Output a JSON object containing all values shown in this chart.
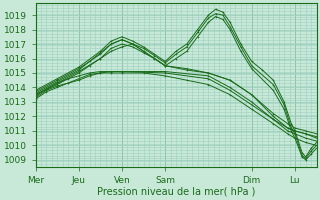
{
  "bg_color": "#c8e8d8",
  "grid_color": "#9ecfbe",
  "line_color": "#1a6b1a",
  "marker_color": "#1a6b1a",
  "xlabel": "Pression niveau de la mer( hPa )",
  "xtick_labels": [
    "Mer",
    "Jeu",
    "Ven",
    "Sam",
    "Dim",
    "Lu"
  ],
  "xtick_positions": [
    0,
    24,
    48,
    72,
    120,
    144
  ],
  "xlim": [
    0,
    156
  ],
  "ylim": [
    1008.5,
    1019.8
  ],
  "yticks": [
    1009,
    1010,
    1011,
    1012,
    1013,
    1014,
    1015,
    1016,
    1017,
    1018,
    1019
  ],
  "total_hours": 156,
  "curves": [
    [
      0,
      1013.3,
      6,
      1013.8,
      12,
      1014.1,
      18,
      1014.3,
      24,
      1014.5,
      30,
      1014.8,
      36,
      1015.0,
      42,
      1015.0,
      48,
      1015.0,
      60,
      1015.0,
      72,
      1014.8,
      84,
      1014.5,
      96,
      1014.2,
      108,
      1013.5,
      120,
      1012.5,
      132,
      1011.5,
      140,
      1010.8,
      144,
      1010.5,
      150,
      1010.2,
      156,
      1010.0
    ],
    [
      0,
      1013.4,
      6,
      1013.9,
      12,
      1014.3,
      18,
      1014.6,
      24,
      1014.8,
      30,
      1015.0,
      36,
      1015.1,
      42,
      1015.1,
      48,
      1015.1,
      72,
      1015.0,
      96,
      1014.6,
      108,
      1013.8,
      120,
      1012.8,
      132,
      1011.8,
      140,
      1011.0,
      144,
      1010.8,
      150,
      1010.5,
      156,
      1010.3
    ],
    [
      0,
      1013.2,
      6,
      1013.7,
      12,
      1014.0,
      18,
      1014.3,
      24,
      1014.6,
      30,
      1014.9,
      36,
      1015.0,
      42,
      1015.1,
      48,
      1015.1,
      72,
      1015.1,
      96,
      1014.8,
      108,
      1014.0,
      120,
      1013.0,
      132,
      1011.8,
      140,
      1011.2,
      144,
      1011.0,
      150,
      1010.8,
      156,
      1010.6
    ],
    [
      0,
      1013.5,
      12,
      1014.2,
      24,
      1015.0,
      30,
      1015.5,
      36,
      1016.0,
      42,
      1016.5,
      48,
      1016.8,
      54,
      1017.0,
      60,
      1016.5,
      72,
      1015.5,
      84,
      1015.2,
      96,
      1015.0,
      108,
      1014.5,
      120,
      1013.5,
      132,
      1012.2,
      140,
      1011.5,
      144,
      1011.2,
      150,
      1011.0,
      156,
      1010.8
    ],
    [
      0,
      1013.6,
      12,
      1014.4,
      24,
      1015.2,
      30,
      1015.8,
      36,
      1016.4,
      42,
      1017.0,
      48,
      1017.3,
      54,
      1017.0,
      60,
      1016.5,
      66,
      1016.0,
      72,
      1015.5,
      84,
      1015.3,
      96,
      1015.0,
      108,
      1014.5,
      120,
      1013.5,
      132,
      1012.0,
      140,
      1011.2,
      144,
      1011.0,
      150,
      1010.8,
      156,
      1010.5
    ],
    [
      0,
      1013.8,
      12,
      1014.6,
      24,
      1015.4,
      36,
      1016.5,
      42,
      1017.2,
      48,
      1017.5,
      54,
      1017.2,
      60,
      1016.8,
      66,
      1016.3,
      72,
      1015.8,
      78,
      1016.5,
      84,
      1017.0,
      90,
      1018.0,
      96,
      1019.0,
      100,
      1019.4,
      104,
      1019.2,
      108,
      1018.5,
      114,
      1017.0,
      120,
      1015.8,
      126,
      1015.2,
      132,
      1014.5,
      138,
      1013.0,
      142,
      1011.5,
      144,
      1011.0,
      148,
      1009.5,
      150,
      1009.2,
      153,
      1009.8,
      156,
      1010.2
    ],
    [
      0,
      1013.7,
      12,
      1014.5,
      24,
      1015.3,
      36,
      1016.3,
      42,
      1017.0,
      48,
      1017.3,
      54,
      1017.0,
      60,
      1016.7,
      66,
      1016.2,
      72,
      1015.7,
      78,
      1016.3,
      84,
      1016.8,
      90,
      1017.8,
      96,
      1018.8,
      100,
      1019.1,
      104,
      1019.0,
      108,
      1018.2,
      114,
      1016.8,
      120,
      1015.5,
      132,
      1014.2,
      138,
      1012.8,
      142,
      1011.2,
      144,
      1010.8,
      148,
      1009.3,
      150,
      1009.1,
      153,
      1009.6,
      156,
      1010.0
    ],
    [
      0,
      1013.5,
      12,
      1014.3,
      24,
      1015.1,
      36,
      1016.0,
      42,
      1016.7,
      48,
      1017.0,
      54,
      1016.8,
      60,
      1016.4,
      66,
      1016.0,
      72,
      1015.5,
      78,
      1016.0,
      84,
      1016.5,
      90,
      1017.5,
      96,
      1018.5,
      100,
      1018.9,
      104,
      1018.7,
      108,
      1018.0,
      114,
      1016.5,
      120,
      1015.3,
      132,
      1013.8,
      138,
      1012.5,
      142,
      1011.0,
      144,
      1010.5,
      148,
      1009.2,
      150,
      1009.0,
      153,
      1009.4,
      156,
      1009.8
    ]
  ]
}
